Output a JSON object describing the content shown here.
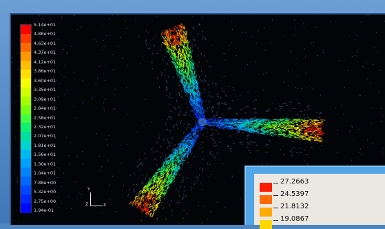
{
  "legend": {
    "labels": [
      "5.14e+01",
      "4.88e+01",
      "4.63e+01",
      "4.37e+01",
      "4.12e+01",
      "3.86e+01",
      "3.60e+01",
      "3.35e+01",
      "3.09e+01",
      "2.84e+01",
      "2.58e+01",
      "2.32e+01",
      "2.07e+01",
      "1.81e+01",
      "1.56e+01",
      "1.30e+01",
      "1.04e+01",
      "7.88e+00",
      "5.32e+00",
      "2.75e+00",
      "1.94e-01"
    ],
    "colors": [
      "#ff0000",
      "#ff3800",
      "#ff6a00",
      "#ff9800",
      "#ffbe00",
      "#ffe000",
      "#f4ff00",
      "#cfff00",
      "#a6ff00",
      "#76ff12",
      "#3eff40",
      "#10f070",
      "#00e0a0",
      "#00d4d0",
      "#00baf0",
      "#00a0ff",
      "#0084ff",
      "#0066ff",
      "#0048ff",
      "#0028ff",
      "#0008ff"
    ]
  },
  "triad": {
    "y_label": "Y",
    "z_label": "Z",
    "x_label": "X"
  },
  "inset": {
    "values": [
      "27.2663",
      "24.5397",
      "21.8132",
      "19.0867"
    ],
    "colors": [
      "#ff1a00",
      "#ff6a00",
      "#ffaa00",
      "#ffd800"
    ]
  },
  "colors": {
    "background": "#030407",
    "frame": "#4f86bf",
    "inset_frame": "#52a6e6",
    "inset_panel": "#ebe8e2"
  }
}
